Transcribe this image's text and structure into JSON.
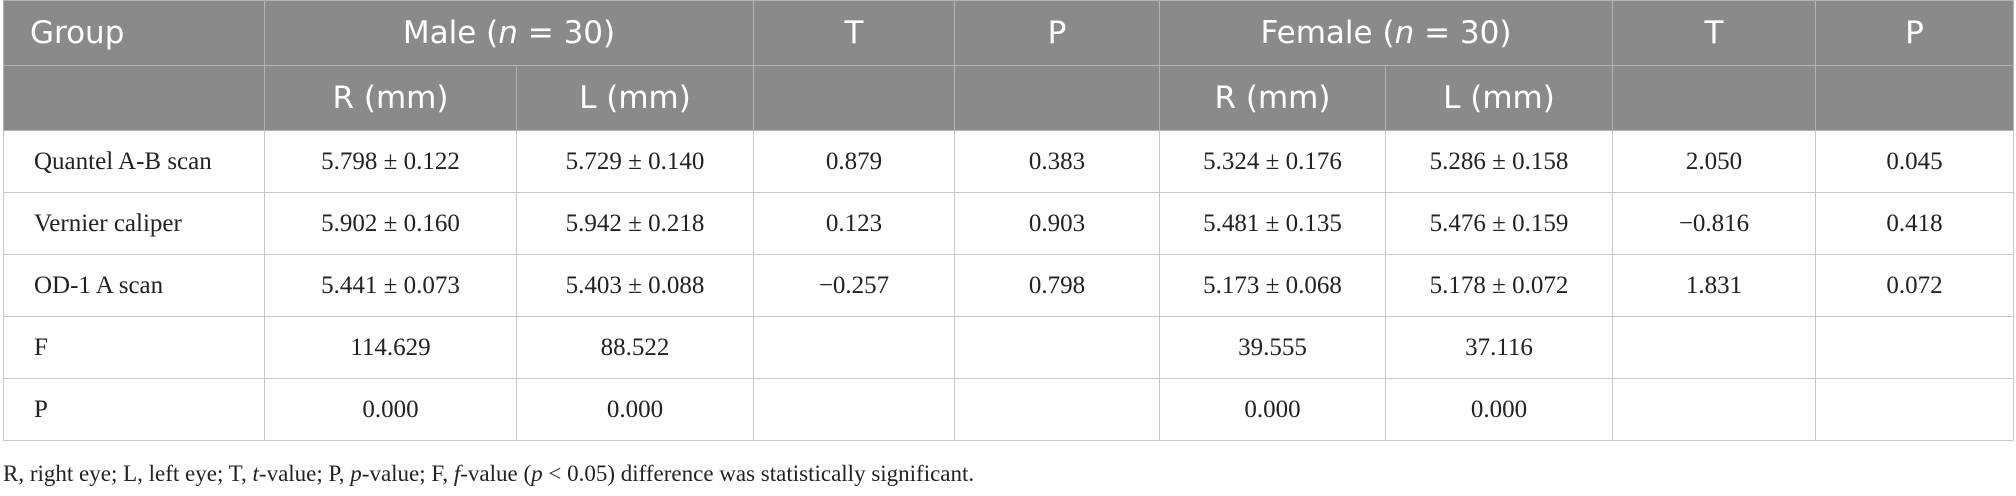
{
  "header": {
    "group": "Group",
    "male_prefix": "Male (",
    "n_symbol": "n",
    "male_suffix": " = 30)",
    "t": "T",
    "p": "P",
    "female_prefix": "Female (",
    "female_suffix": " = 30)",
    "t2": "T",
    "p2": "P",
    "r_mm": "R (mm)",
    "l_mm": "L (mm)",
    "r_mm_f": "R (mm)",
    "l_mm_f": "L (mm)"
  },
  "rows": [
    {
      "label": "Quantel A-B scan",
      "male_r": "5.798 ± 0.122",
      "male_l": "5.729 ± 0.140",
      "t": "0.879",
      "p": "0.383",
      "female_r": "5.324 ± 0.176",
      "female_l": "5.286 ± 0.158",
      "t2": "2.050",
      "p2": "0.045"
    },
    {
      "label": "Vernier caliper",
      "male_r": "5.902 ± 0.160",
      "male_l": "5.942 ± 0.218",
      "t": "0.123",
      "p": "0.903",
      "female_r": "5.481 ± 0.135",
      "female_l": "5.476 ± 0.159",
      "t2": "−0.816",
      "p2": "0.418"
    },
    {
      "label": "OD-1 A scan",
      "male_r": "5.441 ± 0.073",
      "male_l": "5.403 ± 0.088",
      "t": "−0.257",
      "p": "0.798",
      "female_r": "5.173 ± 0.068",
      "female_l": "5.178 ± 0.072",
      "t2": "1.831",
      "p2": "0.072"
    },
    {
      "label": "F",
      "male_r": "114.629",
      "male_l": "88.522",
      "t": "",
      "p": "",
      "female_r": "39.555",
      "female_l": "37.116",
      "t2": "",
      "p2": ""
    },
    {
      "label": "P",
      "male_r": "0.000",
      "male_l": "0.000",
      "t": "",
      "p": "",
      "female_r": "0.000",
      "female_l": "0.000",
      "t2": "",
      "p2": ""
    }
  ],
  "footnote": {
    "part1": "R, right eye; L, left eye; T, ",
    "t_italic": "t",
    "part2": "-value; P, ",
    "p_italic": "p",
    "part3": "-value; F, ",
    "f_italic": "f",
    "part4": "-value (",
    "p_italic2": "p",
    "part5": " < 0.05) difference was statistically significant."
  }
}
